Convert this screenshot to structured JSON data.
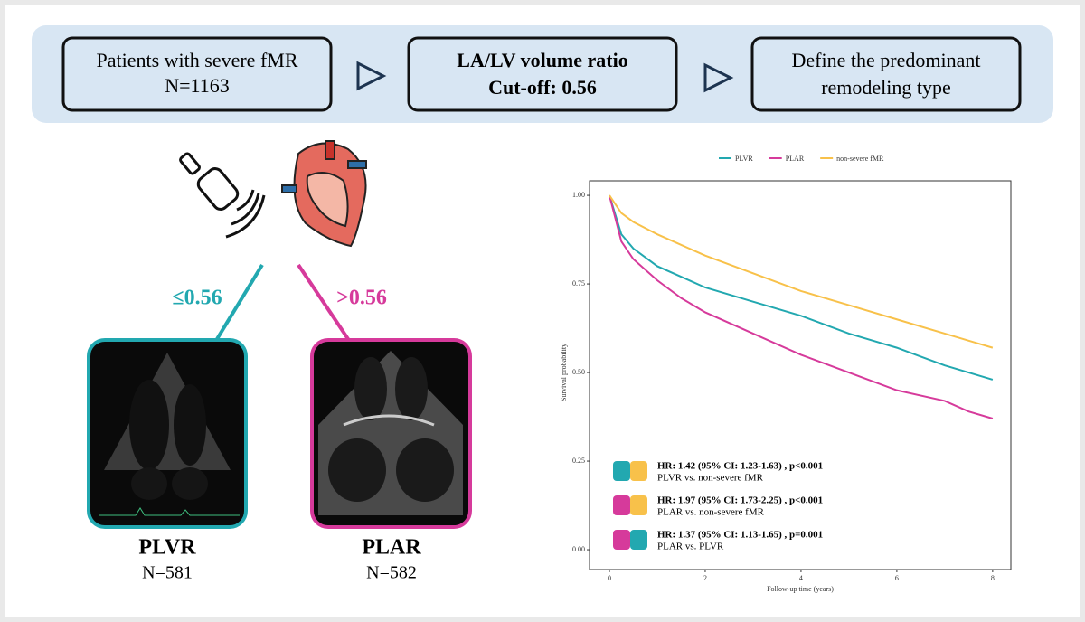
{
  "flow": [
    {
      "lines": [
        "Patients with severe fMR",
        "N=1163"
      ]
    },
    {
      "lines": [
        "LA/LV volume ratio",
        "Cut-off: 0.56"
      ]
    },
    {
      "lines": [
        "Define the predominant",
        "remodeling type"
      ]
    }
  ],
  "split": {
    "low": "≤0.56",
    "high": ">0.56"
  },
  "groups": [
    {
      "name": "PLVR",
      "n": "N=581"
    },
    {
      "name": "PLAR",
      "n": "N=582"
    }
  ],
  "chart_data": {
    "type": "line",
    "x": [
      0,
      0.25,
      0.5,
      1,
      1.5,
      2,
      3,
      4,
      5,
      6,
      7,
      7.5,
      8
    ],
    "series": [
      {
        "name": "PLVR",
        "color": "#22a8b0",
        "values": [
          1,
          0.89,
          0.85,
          0.8,
          0.77,
          0.74,
          0.7,
          0.66,
          0.61,
          0.57,
          0.52,
          0.5,
          0.48
        ]
      },
      {
        "name": "PLAR",
        "color": "#d63a9b",
        "values": [
          1,
          0.87,
          0.82,
          0.76,
          0.71,
          0.67,
          0.61,
          0.55,
          0.5,
          0.45,
          0.42,
          0.39,
          0.37
        ]
      },
      {
        "name": "non-severe fMR",
        "color": "#f8c14a",
        "values": [
          1,
          0.95,
          0.925,
          0.89,
          0.86,
          0.83,
          0.78,
          0.73,
          0.69,
          0.65,
          0.61,
          0.59,
          0.57
        ]
      }
    ],
    "xlabel": "Follow-up time (years)",
    "ylabel": "Survival probability",
    "xlim": [
      -0.415,
      8.38
    ],
    "ylim": [
      -0.056,
      1.041
    ],
    "xticks": [
      0,
      2,
      4,
      6,
      8
    ],
    "yticks": [
      {
        "value": 0,
        "label": "0.00"
      },
      {
        "value": 0.25,
        "label": "0.25"
      },
      {
        "value": 0.5,
        "label": "0.50"
      },
      {
        "value": 0.75,
        "label": "0.75"
      },
      {
        "value": 1,
        "label": "1.00"
      }
    ],
    "legend": "top",
    "annotations": [
      {
        "hr": "HR: 1.42 (95% CI: 1.23-1.63) , p<0.001",
        "comparison": "PLVR vs. non-severe fMR"
      },
      {
        "hr": "HR: 1.97 (95% CI: 1.73-2.25) , p<0.001",
        "comparison": "PLAR vs. non-severe fMR"
      },
      {
        "hr": "HR: 1.37 (95% CI: 1.13-1.65) , p=0.001",
        "comparison": "PLAR vs. PLVR"
      }
    ]
  }
}
